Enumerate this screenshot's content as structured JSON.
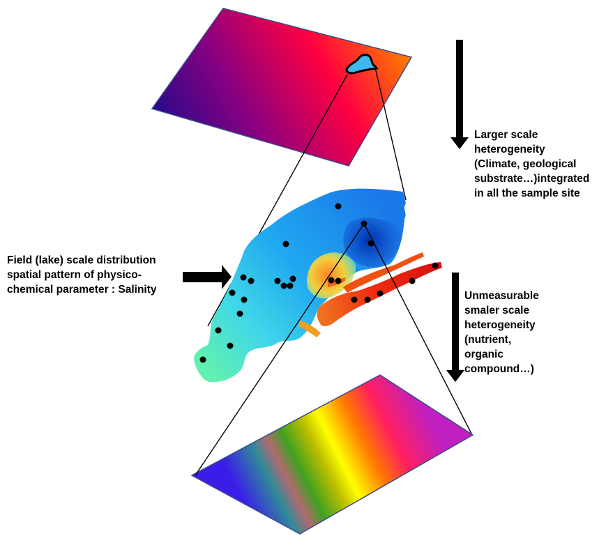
{
  "labels": {
    "larger_scale": [
      "Larger scale",
      "heterogeneity",
      "(Climate, geological",
      "substrate…)integrated",
      "in all the sample site"
    ],
    "field_scale": [
      "Field (lake) scale distribution",
      "spatial pattern of physico-",
      "chemical parameter : Salinity"
    ],
    "smaller_scale": [
      "Unmeasurable",
      "smaler scale",
      "heterogeneity",
      "(nutrient,",
      "organic",
      "compound…)"
    ]
  },
  "colors": {
    "top_plane": [
      "#1e0a8c",
      "#8a0080",
      "#ff0040",
      "#ff7a00"
    ],
    "bottom_plane": [
      "#3a1ee8",
      "#2f8a9a",
      "#c0c000",
      "#ffff00",
      "#ff7a00",
      "#ff2060",
      "#c020c0"
    ],
    "lake_ramp": [
      "#1040c8",
      "#1a8cf0",
      "#40c8f0",
      "#60f0c0",
      "#f0e040",
      "#f08020",
      "#e02010"
    ],
    "arrow": "#000000",
    "sample_point": "#000000"
  },
  "icons": [
    "down-arrow-icon",
    "right-arrow-icon",
    "down-arrow-icon"
  ]
}
